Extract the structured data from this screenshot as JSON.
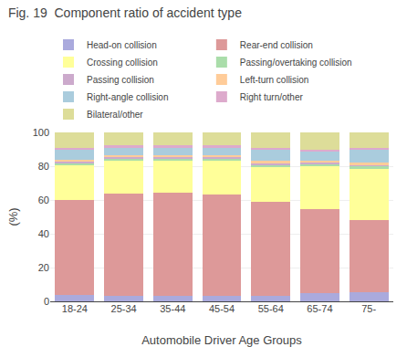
{
  "chart_data": {
    "type": "bar",
    "title": "Fig. 19  Component ratio of accident type",
    "xlabel": "Automobile Driver Age Groups",
    "ylabel": "(%)",
    "categories": [
      "18-24",
      "25-34",
      "35-44",
      "45-54",
      "55-64",
      "65-74",
      "75-"
    ],
    "series": [
      {
        "name": "Head-on collision",
        "color": "#aaaadd",
        "values": [
          4.0,
          3.5,
          3.0,
          3.5,
          3.5,
          5.0,
          5.5
        ]
      },
      {
        "name": "Rear-end collision",
        "color": "#dd9999",
        "values": [
          56.0,
          60.5,
          61.5,
          59.5,
          55.5,
          49.5,
          42.5
        ]
      },
      {
        "name": "Crossing collision",
        "color": "#ffff99",
        "values": [
          20.5,
          19.0,
          18.5,
          20.0,
          20.5,
          25.5,
          30.5
        ]
      },
      {
        "name": "Passing/overtaking collision",
        "color": "#aaddaa",
        "values": [
          1.5,
          1.5,
          1.5,
          1.5,
          1.5,
          1.5,
          1.5
        ]
      },
      {
        "name": "Passing collision",
        "color": "#ccaacc",
        "values": [
          1.0,
          1.0,
          1.0,
          1.0,
          1.0,
          1.0,
          1.0
        ]
      },
      {
        "name": "Left-turn collision",
        "color": "#ffcc99",
        "values": [
          1.0,
          1.0,
          1.0,
          1.0,
          1.0,
          1.0,
          1.0
        ]
      },
      {
        "name": "Right-angle collision",
        "color": "#aaccdd",
        "values": [
          5.5,
          4.5,
          4.5,
          4.5,
          6.5,
          5.0,
          7.5
        ]
      },
      {
        "name": "Right turn/other",
        "color": "#ddaacc",
        "values": [
          1.5,
          1.5,
          1.5,
          1.5,
          1.5,
          1.5,
          1.5
        ]
      },
      {
        "name": "Bilateral/other",
        "color": "#dddd99",
        "values": [
          9.0,
          7.5,
          7.5,
          7.5,
          9.0,
          10.0,
          9.0
        ]
      }
    ],
    "stacked": true,
    "ylim": [
      0,
      100
    ],
    "yticks": [
      0,
      20,
      40,
      60,
      80,
      100
    ],
    "grid": true,
    "legend": "top"
  }
}
